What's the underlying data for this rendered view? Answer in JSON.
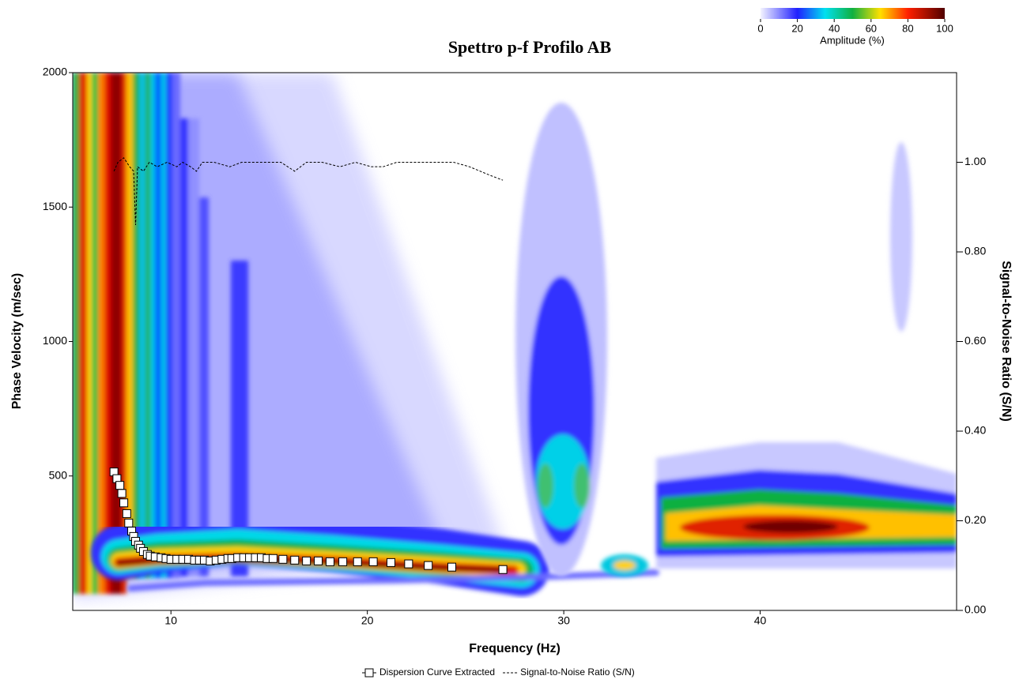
{
  "chart_data": {
    "type": "scatter",
    "title": "Spettro p-f  Profilo AB",
    "x_label": "Frequency (Hz)",
    "y_label": "Phase Velocity (m/sec)",
    "y2_label": "Signal-to-Noise Ratio (S/N)",
    "xlim": [
      5,
      50
    ],
    "xticks": [
      10,
      20,
      30,
      40
    ],
    "ylim": [
      0,
      2000
    ],
    "yticks": [
      500,
      1000,
      1500,
      2000
    ],
    "y2lim": [
      0,
      1.2
    ],
    "y2ticks": [
      {
        "value": 0,
        "label": "0.00"
      },
      {
        "value": 0.2,
        "label": "0.20"
      },
      {
        "value": 0.4,
        "label": "0.40"
      },
      {
        "value": 0.6,
        "label": "0.60"
      },
      {
        "value": 0.8,
        "label": "0.80"
      },
      {
        "value": 1.0,
        "label": "1.00"
      }
    ],
    "legend": "bottom",
    "colorbar": {
      "label": "Amplitude (%)",
      "lim": [
        0,
        100
      ],
      "ticks": [
        0,
        20,
        40,
        60,
        80,
        100
      ]
    },
    "series": [
      {
        "name": "Dispersion Curve Extracted",
        "type": "scatter",
        "color": "#000000",
        "x": [
          7.1,
          7.25,
          7.4,
          7.5,
          7.6,
          7.75,
          7.85,
          8.0,
          8.1,
          8.2,
          8.35,
          8.45,
          8.6,
          8.8,
          8.95,
          9.2,
          9.5,
          9.75,
          10.0,
          10.3,
          10.6,
          10.9,
          11.2,
          11.45,
          11.7,
          12.0,
          12.3,
          12.6,
          12.9,
          13.1,
          13.4,
          13.7,
          14.0,
          14.3,
          14.6,
          14.9,
          15.2,
          15.7,
          16.3,
          16.9,
          17.5,
          18.1,
          18.75,
          19.5,
          20.3,
          21.2,
          22.1,
          23.1,
          24.3,
          26.9
        ],
        "values": [
          515,
          490,
          465,
          435,
          400,
          360,
          325,
          295,
          275,
          257,
          243,
          231,
          219,
          208,
          202,
          199,
          196,
          193,
          190,
          190,
          190,
          190,
          187,
          187,
          187,
          184,
          187,
          190,
          193,
          193,
          196,
          196,
          196,
          196,
          196,
          193,
          193,
          190,
          187,
          184,
          184,
          181,
          181,
          181,
          181,
          178,
          173,
          167,
          161,
          152
        ]
      },
      {
        "name": "Signal-to-Noise Ratio (S/N)",
        "type": "line",
        "axis": "y2",
        "color": "#000000",
        "dash": true,
        "x": [
          7.1,
          7.3,
          7.6,
          7.9,
          8.1,
          8.2,
          8.3,
          8.6,
          8.9,
          9.3,
          9.8,
          10.3,
          10.6,
          11.0,
          11.3,
          11.6,
          12.2,
          13.0,
          13.6,
          14.8,
          15.6,
          16.3,
          16.9,
          17.7,
          18.6,
          19.4,
          20.2,
          20.8,
          21.5,
          24.4,
          25.2,
          26.3,
          26.9
        ],
        "values": [
          0.98,
          1.0,
          1.01,
          0.99,
          0.98,
          0.86,
          0.99,
          0.98,
          1.0,
          0.99,
          1.0,
          0.99,
          1.0,
          0.99,
          0.98,
          1.0,
          1.0,
          0.99,
          1.0,
          1.0,
          1.0,
          0.98,
          1.0,
          1.0,
          0.99,
          1.0,
          0.99,
          0.99,
          1.0,
          1.0,
          0.99,
          0.97,
          0.96
        ]
      }
    ]
  }
}
